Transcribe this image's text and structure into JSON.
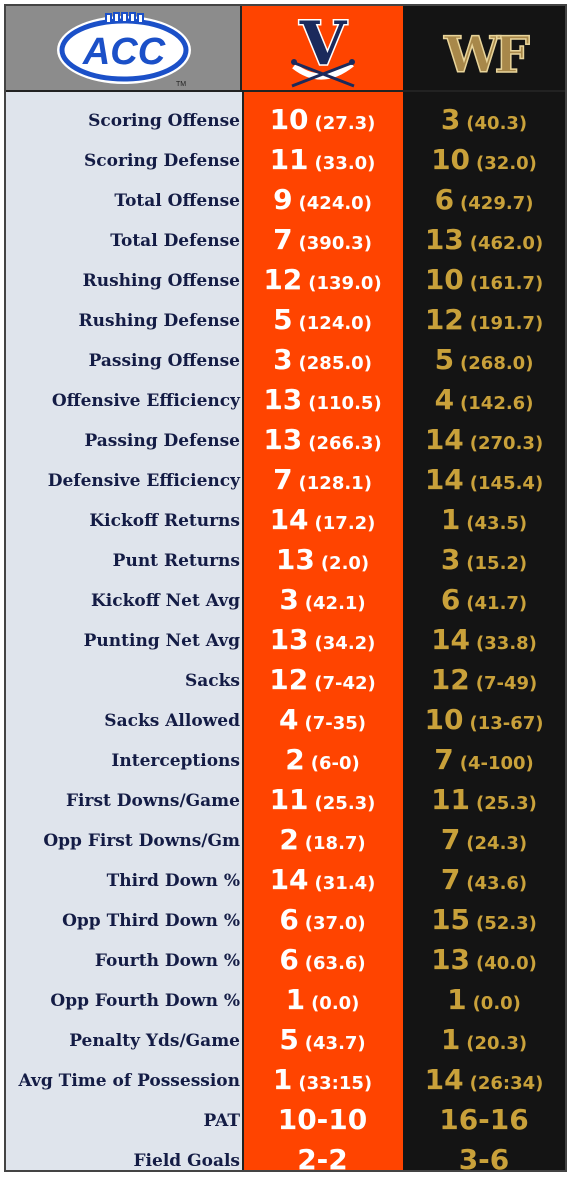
{
  "logos": {
    "conference": "ACC",
    "team_a": "V",
    "team_b": "WF"
  },
  "colors": {
    "team_a_bg": "#ff4400",
    "team_b_bg": "#141414",
    "team_b_text": "#c9a13a",
    "label_text": "#141c45",
    "label_bg": "#dfe4ec"
  },
  "rows": [
    {
      "label": "Scoring Offense",
      "a_rank": "10",
      "a_val": "(27.3)",
      "b_rank": "3",
      "b_val": "(40.3)"
    },
    {
      "label": "Scoring Defense",
      "a_rank": "11",
      "a_val": "(33.0)",
      "b_rank": "10",
      "b_val": "(32.0)"
    },
    {
      "label": "Total Offense",
      "a_rank": "9",
      "a_val": "(424.0)",
      "b_rank": "6",
      "b_val": "(429.7)"
    },
    {
      "label": "Total Defense",
      "a_rank": "7",
      "a_val": "(390.3)",
      "b_rank": "13",
      "b_val": "(462.0)"
    },
    {
      "label": "Rushing Offense",
      "a_rank": "12",
      "a_val": "(139.0)",
      "b_rank": "10",
      "b_val": "(161.7)"
    },
    {
      "label": "Rushing Defense",
      "a_rank": "5",
      "a_val": "(124.0)",
      "b_rank": "12",
      "b_val": "(191.7)"
    },
    {
      "label": "Passing Offense",
      "a_rank": "3",
      "a_val": "(285.0)",
      "b_rank": "5",
      "b_val": "(268.0)"
    },
    {
      "label": "Offensive Efficiency",
      "a_rank": "13",
      "a_val": "(110.5)",
      "b_rank": "4",
      "b_val": "(142.6)"
    },
    {
      "label": "Passing Defense",
      "a_rank": "13",
      "a_val": "(266.3)",
      "b_rank": "14",
      "b_val": "(270.3)"
    },
    {
      "label": "Defensive Efficiency",
      "a_rank": "7",
      "a_val": "(128.1)",
      "b_rank": "14",
      "b_val": "(145.4)"
    },
    {
      "label": "Kickoff Returns",
      "a_rank": "14",
      "a_val": "(17.2)",
      "b_rank": "1",
      "b_val": "(43.5)"
    },
    {
      "label": "Punt Returns",
      "a_rank": "13",
      "a_val": "(2.0)",
      "b_rank": "3",
      "b_val": "(15.2)"
    },
    {
      "label": "Kickoff Net Avg",
      "a_rank": "3",
      "a_val": "(42.1)",
      "b_rank": "6",
      "b_val": "(41.7)"
    },
    {
      "label": "Punting Net Avg",
      "a_rank": "13",
      "a_val": "(34.2)",
      "b_rank": "14",
      "b_val": "(33.8)"
    },
    {
      "label": "Sacks",
      "a_rank": "12",
      "a_val": "(7-42)",
      "b_rank": "12",
      "b_val": "(7-49)"
    },
    {
      "label": "Sacks Allowed",
      "a_rank": "4",
      "a_val": "(7-35)",
      "b_rank": "10",
      "b_val": "(13-67)"
    },
    {
      "label": "Interceptions",
      "a_rank": "2",
      "a_val": "(6-0)",
      "b_rank": "7",
      "b_val": "(4-100)"
    },
    {
      "label": "First Downs/Game",
      "a_rank": "11",
      "a_val": "(25.3)",
      "b_rank": "11",
      "b_val": "(25.3)"
    },
    {
      "label": "Opp First Downs/Gm",
      "a_rank": "2",
      "a_val": "(18.7)",
      "b_rank": "7",
      "b_val": "(24.3)"
    },
    {
      "label": "Third Down %",
      "a_rank": "14",
      "a_val": "(31.4)",
      "b_rank": "7",
      "b_val": "(43.6)"
    },
    {
      "label": "Opp Third Down %",
      "a_rank": "6",
      "a_val": "(37.0)",
      "b_rank": "15",
      "b_val": "(52.3)"
    },
    {
      "label": "Fourth Down %",
      "a_rank": "6",
      "a_val": "(63.6)",
      "b_rank": "13",
      "b_val": "(40.0)"
    },
    {
      "label": "Opp Fourth Down %",
      "a_rank": "1",
      "a_val": "(0.0)",
      "b_rank": "1",
      "b_val": "(0.0)"
    },
    {
      "label": "Penalty Yds/Game",
      "a_rank": "5",
      "a_val": "(43.7)",
      "b_rank": "1",
      "b_val": "(20.3)"
    },
    {
      "label": "Avg Time of Possession",
      "a_rank": "1",
      "a_val": "(33:15)",
      "b_rank": "14",
      "b_val": "(26:34)"
    },
    {
      "label": "PAT",
      "a_rank": "10-10",
      "a_val": "",
      "b_rank": "16-16",
      "b_val": ""
    },
    {
      "label": "Field Goals",
      "a_rank": "2-2",
      "a_val": "",
      "b_rank": "3-6",
      "b_val": ""
    }
  ]
}
